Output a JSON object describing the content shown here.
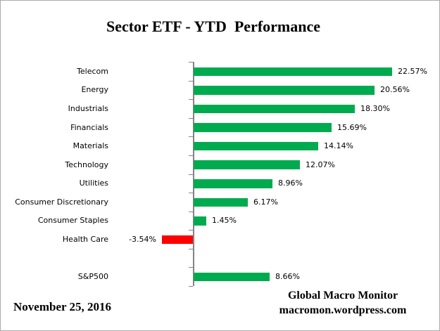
{
  "title": "Sector ETF - YTD  Performance",
  "footer": {
    "date": "November 25, 2016",
    "source_line1": "Global Macro Monitor",
    "source_line2": "macromon.wordpress.com"
  },
  "colors": {
    "positive_bar": "#00AB4F",
    "negative_bar": "#FF0000",
    "axis": "#848484",
    "text": "#000000"
  },
  "chart_data": {
    "type": "bar",
    "orientation": "horizontal",
    "title": "Sector ETF - YTD  Performance",
    "xlabel": "",
    "ylabel": "",
    "value_unit": "percent",
    "xlim": [
      -4,
      24
    ],
    "grid": false,
    "legend": false,
    "categories": [
      "Telecom",
      "Energy",
      "Industrials",
      "Financials",
      "Materials",
      "Technology",
      "Utilities",
      "Consumer Discretionary",
      "Consumer Staples",
      "Health Care",
      "",
      "S&P500"
    ],
    "values": [
      22.57,
      20.56,
      18.3,
      15.69,
      14.14,
      12.07,
      8.96,
      6.17,
      1.45,
      -3.54,
      null,
      8.66
    ],
    "data_labels": [
      "22.57%",
      "20.56%",
      "18.30%",
      "15.69%",
      "14.14%",
      "12.07%",
      "8.96%",
      "6.17%",
      "1.45%",
      "-3.54%",
      "",
      "8.66%"
    ]
  }
}
